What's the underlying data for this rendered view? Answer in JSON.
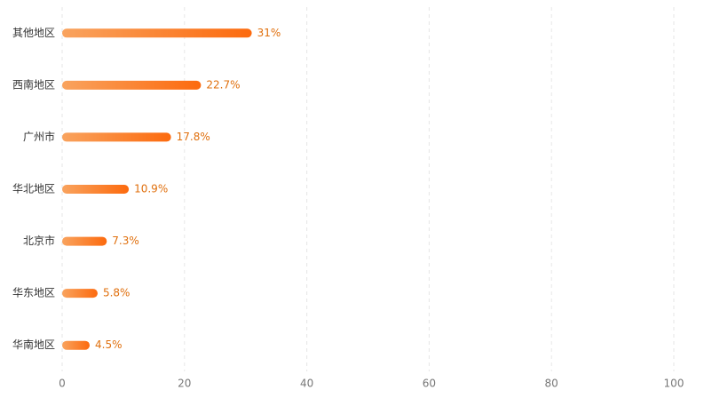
{
  "chart_data": {
    "type": "barh",
    "categories": [
      "其他地区",
      "西南地区",
      "广州市",
      "华北地区",
      "北京市",
      "华东地区",
      "华南地区"
    ],
    "values": [
      31,
      22.7,
      17.8,
      10.9,
      7.3,
      5.8,
      4.5
    ],
    "value_labels": [
      "31%",
      "22.7%",
      "17.8%",
      "10.9%",
      "7.3%",
      "5.8%",
      "4.5%"
    ],
    "colors": [
      "#f9a35e",
      "#fc6a0e"
    ],
    "label_color": "#e0700e",
    "xlim": [
      0,
      100
    ],
    "xticks": [
      0,
      20,
      40,
      60,
      80,
      100
    ],
    "grid": true
  }
}
